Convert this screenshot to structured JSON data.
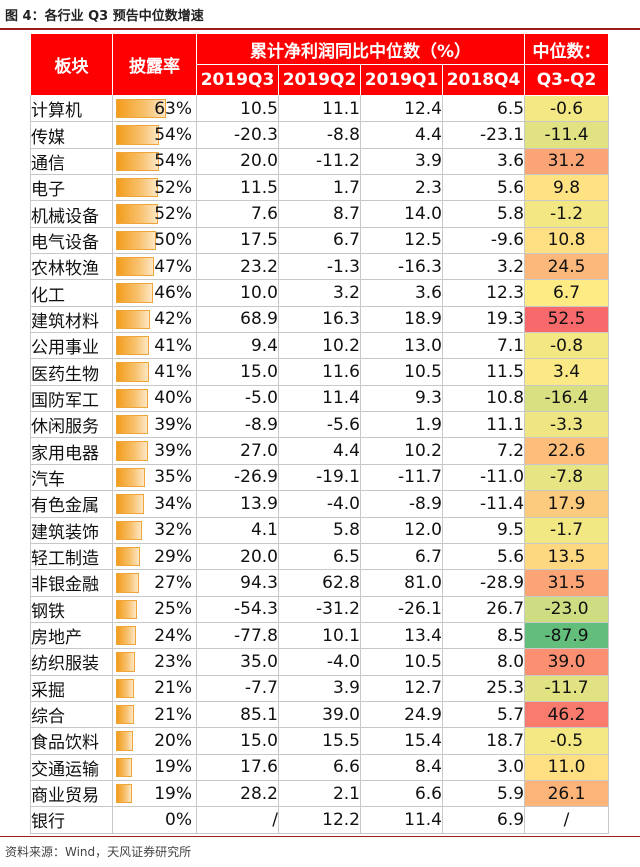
{
  "title": "图 4：各行业 Q3 预告中位数增速",
  "source": "资料来源：Wind，天风证券研究所",
  "header": {
    "sector": "板块",
    "disclosure": "披露率",
    "group": "累计净利润同比中位数（%）",
    "change_top": "中位数：",
    "change_bottom": "Q3-Q2",
    "periods": [
      "2019Q3",
      "2019Q2",
      "2019Q1",
      "2018Q4"
    ]
  },
  "colors": {
    "header_bg": "#ff0000",
    "bar": "#f39c1b",
    "scale_low": "#63be7b",
    "scale_mid": "#ffeb84",
    "scale_high": "#f8696b"
  },
  "rows": [
    {
      "name": "计算机",
      "rate": "63%",
      "rate_value": 63,
      "q3": "10.5",
      "q2": "11.1",
      "q1": "12.4",
      "q4": "6.5",
      "chg": "-0.6",
      "chg_value": -0.6
    },
    {
      "name": "传媒",
      "rate": "54%",
      "rate_value": 54,
      "q3": "-20.3",
      "q2": "-8.8",
      "q1": "4.4",
      "q4": "-23.1",
      "chg": "-11.4",
      "chg_value": -11.4
    },
    {
      "name": "通信",
      "rate": "54%",
      "rate_value": 54,
      "q3": "20.0",
      "q2": "-11.2",
      "q1": "3.9",
      "q4": "3.6",
      "chg": "31.2",
      "chg_value": 31.2
    },
    {
      "name": "电子",
      "rate": "52%",
      "rate_value": 52,
      "q3": "11.5",
      "q2": "1.7",
      "q1": "2.3",
      "q4": "5.6",
      "chg": "9.8",
      "chg_value": 9.8
    },
    {
      "name": "机械设备",
      "rate": "52%",
      "rate_value": 52,
      "q3": "7.6",
      "q2": "8.7",
      "q1": "14.0",
      "q4": "5.8",
      "chg": "-1.2",
      "chg_value": -1.2
    },
    {
      "name": "电气设备",
      "rate": "50%",
      "rate_value": 50,
      "q3": "17.5",
      "q2": "6.7",
      "q1": "12.5",
      "q4": "-9.6",
      "chg": "10.8",
      "chg_value": 10.8
    },
    {
      "name": "农林牧渔",
      "rate": "47%",
      "rate_value": 47,
      "q3": "23.2",
      "q2": "-1.3",
      "q1": "-16.3",
      "q4": "3.2",
      "chg": "24.5",
      "chg_value": 24.5
    },
    {
      "name": "化工",
      "rate": "46%",
      "rate_value": 46,
      "q3": "10.0",
      "q2": "3.2",
      "q1": "3.6",
      "q4": "12.3",
      "chg": "6.7",
      "chg_value": 6.7
    },
    {
      "name": "建筑材料",
      "rate": "42%",
      "rate_value": 42,
      "q3": "68.9",
      "q2": "16.3",
      "q1": "18.9",
      "q4": "19.3",
      "chg": "52.5",
      "chg_value": 52.5
    },
    {
      "name": "公用事业",
      "rate": "41%",
      "rate_value": 41,
      "q3": "9.4",
      "q2": "10.2",
      "q1": "13.0",
      "q4": "7.1",
      "chg": "-0.8",
      "chg_value": -0.8
    },
    {
      "name": "医药生物",
      "rate": "41%",
      "rate_value": 41,
      "q3": "15.0",
      "q2": "11.6",
      "q1": "10.5",
      "q4": "11.5",
      "chg": "3.4",
      "chg_value": 3.4
    },
    {
      "name": "国防军工",
      "rate": "40%",
      "rate_value": 40,
      "q3": "-5.0",
      "q2": "11.4",
      "q1": "9.3",
      "q4": "10.8",
      "chg": "-16.4",
      "chg_value": -16.4
    },
    {
      "name": "休闲服务",
      "rate": "39%",
      "rate_value": 39,
      "q3": "-8.9",
      "q2": "-5.6",
      "q1": "1.9",
      "q4": "11.1",
      "chg": "-3.3",
      "chg_value": -3.3
    },
    {
      "name": "家用电器",
      "rate": "39%",
      "rate_value": 39,
      "q3": "27.0",
      "q2": "4.4",
      "q1": "10.2",
      "q4": "7.2",
      "chg": "22.6",
      "chg_value": 22.6
    },
    {
      "name": "汽车",
      "rate": "35%",
      "rate_value": 35,
      "q3": "-26.9",
      "q2": "-19.1",
      "q1": "-11.7",
      "q4": "-11.0",
      "chg": "-7.8",
      "chg_value": -7.8
    },
    {
      "name": "有色金属",
      "rate": "34%",
      "rate_value": 34,
      "q3": "13.9",
      "q2": "-4.0",
      "q1": "-8.9",
      "q4": "-11.4",
      "chg": "17.9",
      "chg_value": 17.9
    },
    {
      "name": "建筑装饰",
      "rate": "32%",
      "rate_value": 32,
      "q3": "4.1",
      "q2": "5.8",
      "q1": "12.0",
      "q4": "9.5",
      "chg": "-1.7",
      "chg_value": -1.7
    },
    {
      "name": "轻工制造",
      "rate": "29%",
      "rate_value": 29,
      "q3": "20.0",
      "q2": "6.5",
      "q1": "6.7",
      "q4": "5.6",
      "chg": "13.5",
      "chg_value": 13.5
    },
    {
      "name": "非银金融",
      "rate": "27%",
      "rate_value": 27,
      "q3": "94.3",
      "q2": "62.8",
      "q1": "81.0",
      "q4": "-28.9",
      "chg": "31.5",
      "chg_value": 31.5
    },
    {
      "name": "钢铁",
      "rate": "25%",
      "rate_value": 25,
      "q3": "-54.3",
      "q2": "-31.2",
      "q1": "-26.1",
      "q4": "26.7",
      "chg": "-23.0",
      "chg_value": -23.0
    },
    {
      "name": "房地产",
      "rate": "24%",
      "rate_value": 24,
      "q3": "-77.8",
      "q2": "10.1",
      "q1": "13.4",
      "q4": "8.5",
      "chg": "-87.9",
      "chg_value": -87.9
    },
    {
      "name": "纺织服装",
      "rate": "23%",
      "rate_value": 23,
      "q3": "35.0",
      "q2": "-4.0",
      "q1": "10.5",
      "q4": "8.0",
      "chg": "39.0",
      "chg_value": 39.0
    },
    {
      "name": "采掘",
      "rate": "21%",
      "rate_value": 21,
      "q3": "-7.7",
      "q2": "3.9",
      "q1": "12.7",
      "q4": "25.3",
      "chg": "-11.7",
      "chg_value": -11.7
    },
    {
      "name": "综合",
      "rate": "21%",
      "rate_value": 21,
      "q3": "85.1",
      "q2": "39.0",
      "q1": "24.9",
      "q4": "5.7",
      "chg": "46.2",
      "chg_value": 46.2
    },
    {
      "name": "食品饮料",
      "rate": "20%",
      "rate_value": 20,
      "q3": "15.0",
      "q2": "15.5",
      "q1": "15.4",
      "q4": "18.7",
      "chg": "-0.5",
      "chg_value": -0.5
    },
    {
      "name": "交通运输",
      "rate": "19%",
      "rate_value": 19,
      "q3": "17.6",
      "q2": "6.6",
      "q1": "8.4",
      "q4": "3.0",
      "chg": "11.0",
      "chg_value": 11.0
    },
    {
      "name": "商业贸易",
      "rate": "19%",
      "rate_value": 19,
      "q3": "28.2",
      "q2": "2.1",
      "q1": "6.6",
      "q4": "5.9",
      "chg": "26.1",
      "chg_value": 26.1
    },
    {
      "name": "银行",
      "rate": "0%",
      "rate_value": 0,
      "q3": "/",
      "q2": "12.2",
      "q1": "11.4",
      "q4": "6.9",
      "chg": "/",
      "chg_value": null
    }
  ]
}
